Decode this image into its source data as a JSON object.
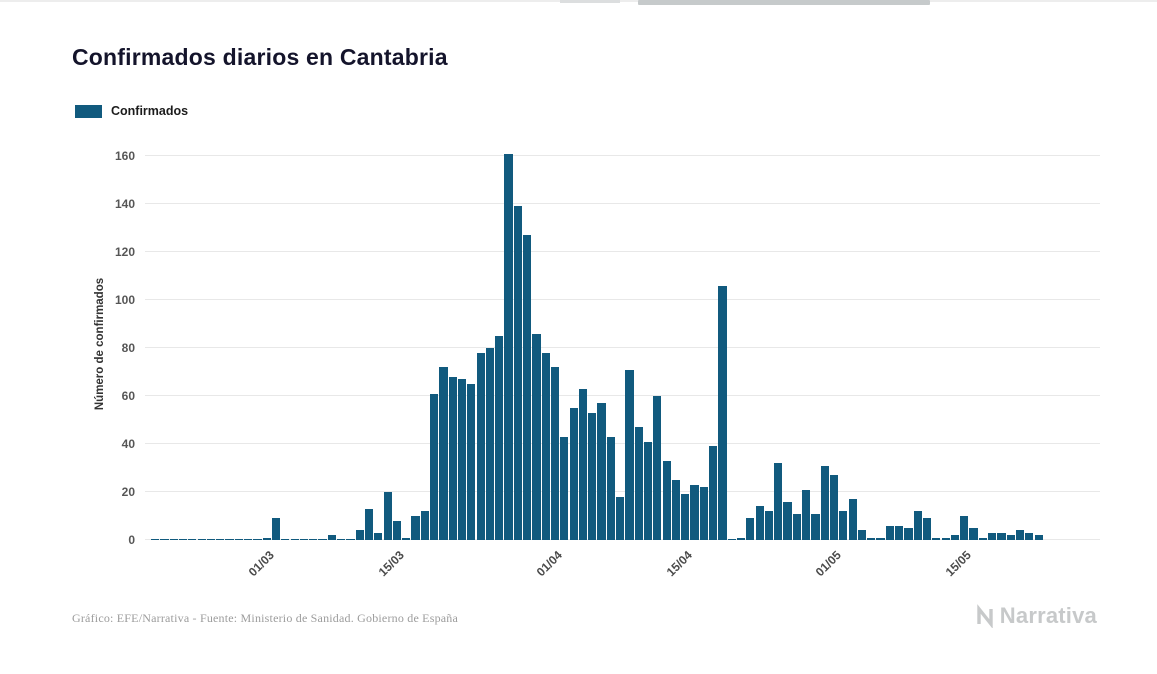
{
  "legend": {
    "label": "Confirmados"
  },
  "footer": {
    "credit": "Gráfico: EFE/Narrativa - Fuente: Ministerio de Sanidad. Gobierno de España",
    "brand": "Narrativa"
  },
  "chart_data": {
    "type": "bar",
    "title": "Confirmados diarios en Cantabria",
    "legend": [
      "Confirmados"
    ],
    "legend_position": "top-left",
    "ylabel": "Número de confirmados",
    "xlabel": "",
    "ylim": [
      0,
      160
    ],
    "yticks": [
      0,
      20,
      40,
      60,
      80,
      100,
      120,
      140,
      160
    ],
    "xtick_labels": [
      "01/03",
      "15/03",
      "01/04",
      "15/04",
      "01/05",
      "15/05"
    ],
    "grid": true,
    "bar_color": "#115a7e",
    "x": [
      "18/02",
      "19/02",
      "20/02",
      "21/02",
      "22/02",
      "23/02",
      "24/02",
      "25/02",
      "26/02",
      "27/02",
      "28/02",
      "29/02",
      "01/03",
      "02/03",
      "03/03",
      "04/03",
      "05/03",
      "06/03",
      "07/03",
      "08/03",
      "09/03",
      "10/03",
      "11/03",
      "12/03",
      "13/03",
      "14/03",
      "15/03",
      "16/03",
      "17/03",
      "18/03",
      "19/03",
      "20/03",
      "21/03",
      "22/03",
      "23/03",
      "24/03",
      "25/03",
      "26/03",
      "27/03",
      "28/03",
      "29/03",
      "30/03",
      "31/03",
      "01/04",
      "02/04",
      "03/04",
      "04/04",
      "05/04",
      "06/04",
      "07/04",
      "08/04",
      "09/04",
      "10/04",
      "11/04",
      "12/04",
      "13/04",
      "14/04",
      "15/04",
      "16/04",
      "17/04",
      "18/04",
      "19/04",
      "20/04",
      "21/04",
      "22/04",
      "23/04",
      "24/04",
      "25/04",
      "26/04",
      "27/04",
      "28/04",
      "29/04",
      "30/04",
      "01/05",
      "02/05",
      "03/05",
      "04/05",
      "05/05",
      "06/05",
      "07/05",
      "08/05",
      "09/05",
      "10/05",
      "11/05",
      "12/05",
      "13/05",
      "14/05",
      "15/05",
      "16/05",
      "17/05",
      "18/05",
      "19/05",
      "20/05",
      "21/05",
      "22/05",
      "23/05"
    ],
    "values": [
      0,
      0,
      0,
      0,
      0,
      0,
      0,
      0,
      0,
      0,
      0,
      0,
      1,
      9,
      0,
      0,
      0,
      0,
      0,
      2,
      0,
      0,
      4,
      13,
      3,
      20,
      8,
      1,
      10,
      12,
      61,
      72,
      68,
      67,
      65,
      78,
      80,
      85,
      161,
      139,
      127,
      86,
      78,
      72,
      43,
      55,
      63,
      53,
      57,
      43,
      18,
      71,
      47,
      41,
      60,
      33,
      25,
      19,
      23,
      22,
      39,
      106,
      0,
      1,
      9,
      14,
      12,
      32,
      16,
      11,
      21,
      11,
      31,
      27,
      12,
      17,
      4,
      1,
      1,
      6,
      6,
      5,
      12,
      9,
      1,
      1,
      2,
      10,
      5,
      1,
      3,
      3,
      2,
      4,
      3,
      2
    ]
  }
}
